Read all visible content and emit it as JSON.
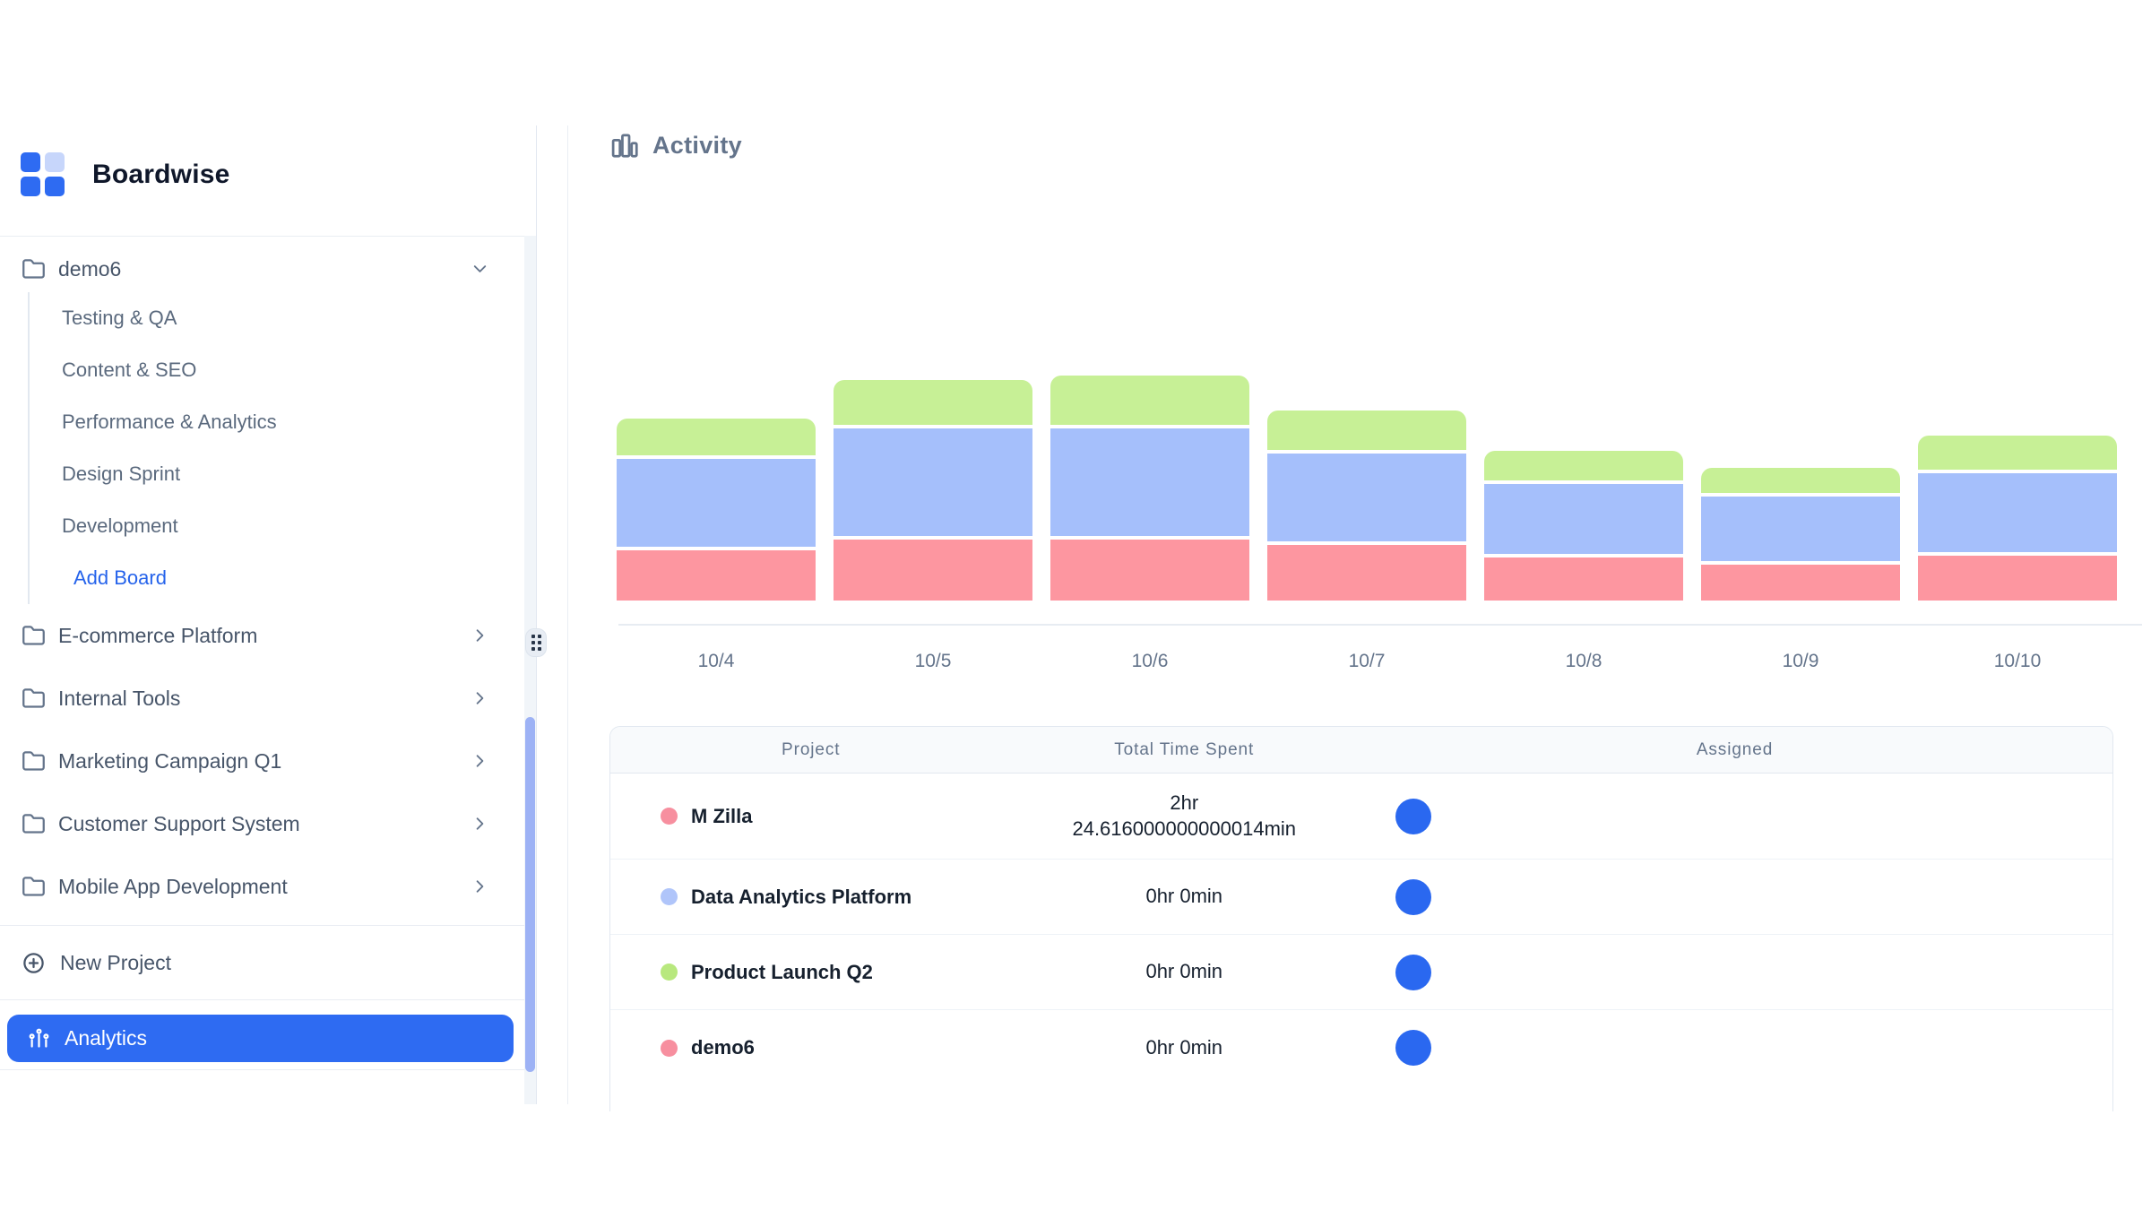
{
  "app": {
    "name": "Boardwise"
  },
  "colors": {
    "brand_blue": "#2e6bf2",
    "add_board_link": "#2563eb",
    "avatar_blue": "#2a68f0",
    "scrollbar_thumb": "#9db2f5",
    "sidebar_text": "#475569",
    "muted_text": "#64748b",
    "table_header_bg": "#f8fafc",
    "border": "#e2e8f0"
  },
  "sidebar": {
    "active_project": {
      "label": "demo6",
      "boards": [
        "Testing & QA",
        "Content & SEO",
        "Performance & Analytics",
        "Design Sprint",
        "Development"
      ],
      "add_board_label": "Add Board"
    },
    "projects": [
      {
        "label": "E-commerce Platform"
      },
      {
        "label": "Internal Tools"
      },
      {
        "label": "Marketing Campaign Q1"
      },
      {
        "label": "Customer Support System"
      },
      {
        "label": "Mobile App Development"
      }
    ],
    "new_project_label": "New Project",
    "analytics_label": "Analytics"
  },
  "main": {
    "header": {
      "title": "Activity"
    },
    "table": {
      "columns": [
        "Project",
        "Total Time Spent",
        "Assigned"
      ],
      "rows": [
        {
          "project": "M Zilla",
          "dot_color": "#f78f9f",
          "time_lines": [
            "2hr",
            "24.616000000000014min"
          ],
          "assigned_avatars": 1
        },
        {
          "project": "Data Analytics Platform",
          "dot_color": "#b0c5fa",
          "time_lines": [
            "0hr 0min"
          ],
          "assigned_avatars": 1
        },
        {
          "project": "Product Launch Q2",
          "dot_color": "#b8e87e",
          "time_lines": [
            "0hr 0min"
          ],
          "assigned_avatars": 1
        },
        {
          "project": "demo6",
          "dot_color": "#f78f9f",
          "time_lines": [
            "0hr 0min"
          ],
          "assigned_avatars": 1
        }
      ]
    }
  },
  "chart_data": {
    "type": "bar",
    "stacked": true,
    "title": "Activity",
    "categories": [
      "10/4",
      "10/5",
      "10/6",
      "10/7",
      "10/8",
      "10/9",
      "10/10"
    ],
    "series": [
      {
        "name": "M Zilla",
        "color": "#fd96a0",
        "values": [
          56,
          68,
          68,
          62,
          48,
          40,
          50
        ]
      },
      {
        "name": "Data Analytics Platform",
        "color": "#a5bffb",
        "values": [
          98,
          120,
          120,
          98,
          78,
          72,
          88
        ]
      },
      {
        "name": "Product Launch Q2",
        "color": "#c7f096",
        "values": [
          41,
          50,
          55,
          44,
          33,
          28,
          38
        ]
      }
    ],
    "value_units": "relative height (no y-axis shown)",
    "xlabel": "",
    "ylabel": "",
    "grid": false,
    "legend": "none",
    "y_axis_visible": false
  }
}
